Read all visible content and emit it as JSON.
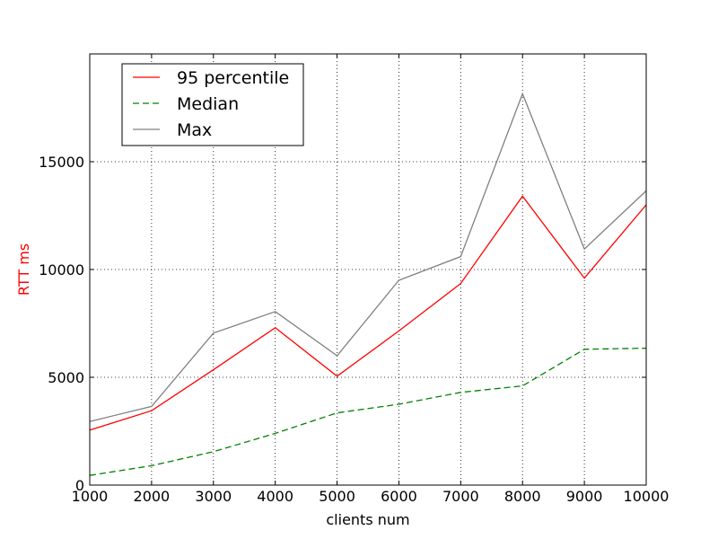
{
  "chart_data": {
    "type": "line",
    "xlabel": "clients num",
    "ylabel": "RTT ms",
    "ylabel_color": "#ff0000",
    "xlim": [
      1000,
      10000
    ],
    "ylim": [
      0,
      20000
    ],
    "x": [
      1000,
      2000,
      3000,
      4000,
      5000,
      6000,
      7000,
      8000,
      9000,
      10000
    ],
    "x_ticks": [
      1000,
      2000,
      3000,
      4000,
      5000,
      6000,
      7000,
      8000,
      9000,
      10000
    ],
    "y_ticks": [
      0,
      5000,
      10000,
      15000
    ],
    "x_tick_labels": [
      "1000",
      "2000",
      "3000",
      "4000",
      "5000",
      "6000",
      "7000",
      "8000",
      "9000",
      "10000"
    ],
    "y_tick_labels": [
      "0",
      "5000",
      "10000",
      "15000"
    ],
    "grid": true,
    "legend_position": "top-left",
    "series": [
      {
        "name": "95 percentile",
        "color": "#ff0000",
        "style": "solid",
        "values": [
          2550,
          3450,
          5350,
          7300,
          5050,
          7150,
          9350,
          13400,
          9600,
          13000
        ]
      },
      {
        "name": "Median",
        "color": "#008000",
        "style": "dashed",
        "values": [
          450,
          900,
          1550,
          2400,
          3350,
          3750,
          4300,
          4600,
          6300,
          6350
        ]
      },
      {
        "name": "Max",
        "color": "#808080",
        "style": "solid",
        "values": [
          2950,
          3650,
          7050,
          8050,
          6000,
          9500,
          10600,
          18150,
          10950,
          13650
        ]
      }
    ]
  }
}
